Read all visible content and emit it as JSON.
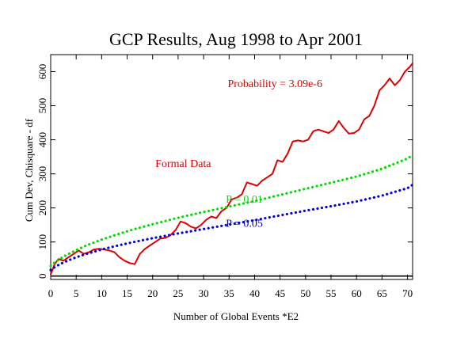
{
  "chart_data": {
    "type": "line",
    "title": "GCP Results, Aug 1998 to Apr 2001",
    "xlabel": "Number of Global Events  *E2",
    "ylabel": "Cum Dev, Chisquare - df",
    "xlim": [
      0,
      71
    ],
    "ylim": [
      -10,
      650
    ],
    "xticks": [
      0,
      5,
      10,
      15,
      20,
      25,
      30,
      35,
      40,
      45,
      50,
      55,
      60,
      65,
      70
    ],
    "yticks": [
      0,
      100,
      200,
      300,
      400,
      500,
      600
    ],
    "grid": false,
    "zero_line": true,
    "series": [
      {
        "name": "Formal Data",
        "color": "#e00000",
        "style": "solid",
        "x": [
          0,
          0.8,
          1.5,
          2.5,
          3.5,
          4.5,
          5.5,
          6.5,
          7.5,
          8.5,
          9.5,
          10.5,
          11.5,
          12.5,
          13.5,
          14.5,
          15.5,
          16.5,
          17.5,
          18.5,
          19.5,
          20.5,
          21.5,
          22.5,
          23.5,
          24.5,
          25.5,
          26.5,
          27.5,
          28.5,
          29.5,
          30.5,
          31.5,
          32.5,
          33.5,
          34.5,
          35.5,
          36.5,
          37.5,
          38.5,
          39.5,
          40.5,
          41.5,
          42.5,
          43.5,
          44.5,
          45.5,
          46.5,
          47.5,
          48.5,
          49.5,
          50.5,
          51.5,
          52.5,
          53.5,
          54.5,
          55.5,
          56.5,
          57.5,
          58.5,
          59.5,
          60.5,
          61.5,
          62.5,
          63.5,
          64.5,
          65.5,
          66.5,
          67.5,
          68.5,
          69.5,
          70.5,
          71
        ],
        "y": [
          5,
          35,
          50,
          45,
          55,
          65,
          75,
          65,
          70,
          78,
          80,
          78,
          75,
          70,
          55,
          45,
          38,
          35,
          65,
          80,
          90,
          100,
          110,
          112,
          120,
          135,
          160,
          155,
          145,
          140,
          150,
          165,
          175,
          170,
          190,
          200,
          225,
          230,
          240,
          275,
          270,
          265,
          280,
          290,
          300,
          340,
          335,
          360,
          395,
          398,
          395,
          400,
          425,
          430,
          425,
          420,
          430,
          455,
          435,
          418,
          420,
          430,
          460,
          470,
          500,
          545,
          560,
          580,
          560,
          575,
          600,
          615,
          625
        ]
      },
      {
        "name": "P = 0.01",
        "color": "#00dd00",
        "style": "dotted",
        "x": [
          0,
          1,
          2,
          3,
          5,
          7,
          10,
          13,
          16,
          20,
          25,
          30,
          35,
          40,
          45,
          50,
          55,
          60,
          65,
          70,
          71
        ],
        "y": [
          30,
          42,
          52,
          61,
          76,
          90,
          107,
          122,
          136,
          152,
          171,
          188,
          204,
          220,
          238,
          256,
          274,
          292,
          315,
          345,
          355
        ]
      },
      {
        "name": "P = 0.05",
        "color": "#0000dd",
        "style": "dotted",
        "x": [
          0,
          1,
          2,
          3,
          5,
          7,
          10,
          13,
          16,
          20,
          25,
          30,
          35,
          40,
          45,
          50,
          55,
          60,
          65,
          70,
          71
        ],
        "y": [
          18,
          28,
          36,
          43,
          55,
          65,
          78,
          89,
          99,
          111,
          125,
          138,
          151,
          164,
          178,
          192,
          205,
          219,
          236,
          258,
          268
        ]
      }
    ],
    "annotations": [
      {
        "text": "Probability = 3.09e-6",
        "x": 44,
        "y": 555,
        "color": "#e00000"
      },
      {
        "text": "Formal Data",
        "x": 26,
        "y": 320,
        "color": "#e00000"
      },
      {
        "text": "P = 0.01",
        "x": 38,
        "y": 215,
        "color": "#00dd00"
      },
      {
        "text": "P = 0.05",
        "x": 38,
        "y": 145,
        "color": "#0000dd"
      }
    ]
  }
}
